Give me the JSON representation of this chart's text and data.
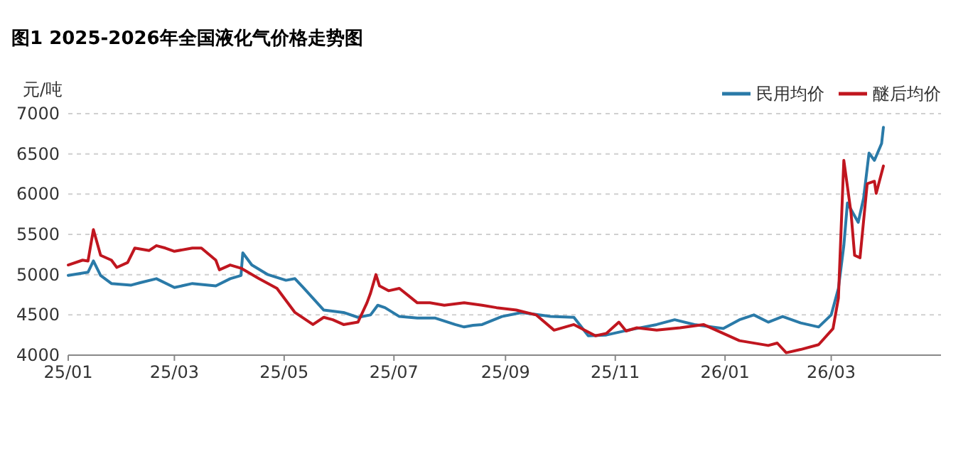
{
  "chart_data": {
    "type": "line",
    "title": "图1 2025-2026年全国液化气价格走势图",
    "ylabel": "元/吨",
    "xlim": [
      "2025-01",
      "2026-05"
    ],
    "xticks": [
      {
        "value": "2025-01",
        "label": "25/01"
      },
      {
        "value": "2025-03",
        "label": "25/03"
      },
      {
        "value": "2025-05",
        "label": "25/05"
      },
      {
        "value": "2025-07",
        "label": "25/07"
      },
      {
        "value": "2025-09",
        "label": "25/09"
      },
      {
        "value": "2025-11",
        "label": "25/11"
      },
      {
        "value": "2026-01",
        "label": "26/01"
      },
      {
        "value": "2026-03",
        "label": "26/03"
      }
    ],
    "ylim": [
      4000,
      7000
    ],
    "yticks": [
      4000,
      4500,
      5000,
      5500,
      6000,
      6500,
      7000
    ],
    "grid": "y",
    "legend": "top right",
    "marker": "none",
    "line_style": "solid",
    "series": [
      {
        "name": "民用均价",
        "color": "#2a7aa8",
        "x": [
          "2025-01-01",
          "2025-01-12",
          "2025-01-15",
          "2025-01-19",
          "2025-01-25",
          "2025-02-05",
          "2025-02-10",
          "2025-02-19",
          "2025-03-01",
          "2025-03-11",
          "2025-03-24",
          "2025-04-01",
          "2025-04-07",
          "2025-04-08",
          "2025-04-13",
          "2025-04-22",
          "2025-05-02",
          "2025-05-07",
          "2025-05-12",
          "2025-05-23",
          "2025-06-03",
          "2025-06-11",
          "2025-06-18",
          "2025-06-22",
          "2025-06-26",
          "2025-07-04",
          "2025-07-14",
          "2025-07-24",
          "2025-08-04",
          "2025-08-09",
          "2025-08-14",
          "2025-08-19",
          "2025-08-30",
          "2025-09-10",
          "2025-09-26",
          "2025-10-09",
          "2025-10-17",
          "2025-10-27",
          "2025-11-08",
          "2025-11-24",
          "2025-12-04",
          "2025-12-15",
          "2025-12-31",
          "2026-01-09",
          "2026-01-17",
          "2026-01-25",
          "2026-02-02",
          "2026-02-12",
          "2026-02-22",
          "2026-03-01",
          "2026-03-05",
          "2026-03-08",
          "2026-03-10",
          "2026-03-13",
          "2026-03-16",
          "2026-03-19",
          "2026-03-22",
          "2026-03-25",
          "2026-03-29",
          "2026-03-30"
        ],
        "values": [
          4990,
          5030,
          5170,
          4990,
          4890,
          4870,
          4900,
          4950,
          4840,
          4890,
          4860,
          4950,
          4990,
          5270,
          5120,
          5000,
          4930,
          4950,
          4830,
          4560,
          4530,
          4470,
          4500,
          4620,
          4590,
          4480,
          4460,
          4460,
          4380,
          4350,
          4370,
          4380,
          4480,
          4530,
          4480,
          4470,
          4240,
          4250,
          4310,
          4380,
          4440,
          4380,
          4330,
          4440,
          4500,
          4410,
          4480,
          4400,
          4350,
          4500,
          4830,
          5360,
          5890,
          5770,
          5650,
          5950,
          6510,
          6420,
          6630,
          6830
        ]
      },
      {
        "name": "醚后均价",
        "color": "#c0161f",
        "x": [
          "2025-01-01",
          "2025-01-09",
          "2025-01-12",
          "2025-01-15",
          "2025-01-19",
          "2025-01-25",
          "2025-01-28",
          "2025-02-03",
          "2025-02-07",
          "2025-02-15",
          "2025-02-19",
          "2025-02-24",
          "2025-03-01",
          "2025-03-11",
          "2025-03-16",
          "2025-03-24",
          "2025-03-26",
          "2025-04-01",
          "2025-04-07",
          "2025-04-17",
          "2025-04-27",
          "2025-05-07",
          "2025-05-17",
          "2025-05-23",
          "2025-05-28",
          "2025-06-03",
          "2025-06-11",
          "2025-06-16",
          "2025-06-18",
          "2025-06-21",
          "2025-06-23",
          "2025-06-28",
          "2025-07-04",
          "2025-07-09",
          "2025-07-14",
          "2025-07-21",
          "2025-07-29",
          "2025-08-09",
          "2025-08-19",
          "2025-08-27",
          "2025-09-07",
          "2025-09-18",
          "2025-09-28",
          "2025-10-09",
          "2025-10-21",
          "2025-10-27",
          "2025-11-03",
          "2025-11-07",
          "2025-11-13",
          "2025-11-24",
          "2025-12-07",
          "2025-12-20",
          "2025-12-31",
          "2026-01-09",
          "2026-01-25",
          "2026-01-30",
          "2026-02-04",
          "2026-02-12",
          "2026-02-22",
          "2026-03-02",
          "2026-03-05",
          "2026-03-08",
          "2026-03-12",
          "2026-03-14",
          "2026-03-17",
          "2026-03-21",
          "2026-03-25",
          "2026-03-26",
          "2026-03-30"
        ],
        "values": [
          5120,
          5180,
          5170,
          5560,
          5240,
          5180,
          5090,
          5150,
          5330,
          5300,
          5360,
          5330,
          5290,
          5330,
          5330,
          5180,
          5060,
          5120,
          5080,
          4950,
          4830,
          4530,
          4380,
          4470,
          4440,
          4380,
          4410,
          4650,
          4770,
          5000,
          4860,
          4800,
          4830,
          4740,
          4650,
          4650,
          4620,
          4650,
          4620,
          4590,
          4560,
          4500,
          4310,
          4380,
          4240,
          4270,
          4410,
          4300,
          4340,
          4310,
          4340,
          4380,
          4270,
          4180,
          4120,
          4150,
          4030,
          4070,
          4130,
          4330,
          4710,
          6420,
          5770,
          5240,
          5210,
          6130,
          6160,
          6010,
          6350
        ]
      }
    ]
  }
}
